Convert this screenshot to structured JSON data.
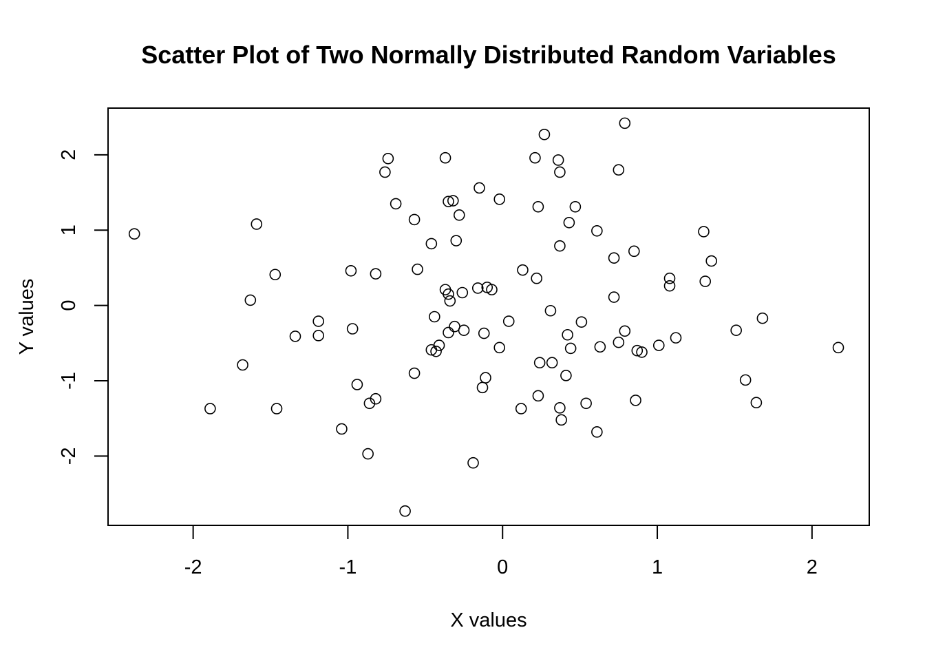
{
  "chart_data": {
    "type": "scatter",
    "title": "Scatter Plot of Two Normally Distributed Random Variables",
    "xlabel": "X values",
    "ylabel": "Y values",
    "xlim": [
      -2.55,
      2.37
    ],
    "ylim": [
      -2.92,
      2.62
    ],
    "xticks": [
      -2,
      -1,
      0,
      1,
      2
    ],
    "xtick_labels": [
      "-2",
      "-1",
      "0",
      "1",
      "2"
    ],
    "yticks": [
      -2,
      -1,
      0,
      1,
      2
    ],
    "ytick_labels": [
      "-2",
      "-1",
      "0",
      "1",
      "2"
    ],
    "grid": false,
    "marker": "open-circle",
    "color": "#000000",
    "points": [
      {
        "x": -2.38,
        "y": 0.95
      },
      {
        "x": -1.89,
        "y": -1.37
      },
      {
        "x": -1.68,
        "y": -0.79
      },
      {
        "x": -1.63,
        "y": 0.07
      },
      {
        "x": -1.59,
        "y": 1.08
      },
      {
        "x": -1.47,
        "y": 0.41
      },
      {
        "x": -1.46,
        "y": -1.37
      },
      {
        "x": -1.34,
        "y": -0.41
      },
      {
        "x": -1.19,
        "y": -0.21
      },
      {
        "x": -1.19,
        "y": -0.4
      },
      {
        "x": -1.04,
        "y": -1.64
      },
      {
        "x": -0.98,
        "y": 0.46
      },
      {
        "x": -0.97,
        "y": -0.31
      },
      {
        "x": -0.94,
        "y": -1.05
      },
      {
        "x": -0.87,
        "y": -1.97
      },
      {
        "x": -0.86,
        "y": -1.3
      },
      {
        "x": -0.82,
        "y": 0.42
      },
      {
        "x": -0.82,
        "y": -1.24
      },
      {
        "x": -0.76,
        "y": 1.77
      },
      {
        "x": -0.74,
        "y": 1.95
      },
      {
        "x": -0.69,
        "y": 1.35
      },
      {
        "x": -0.63,
        "y": -2.73
      },
      {
        "x": -0.57,
        "y": 1.14
      },
      {
        "x": -0.57,
        "y": -0.9
      },
      {
        "x": -0.55,
        "y": 0.48
      },
      {
        "x": -0.46,
        "y": 0.82
      },
      {
        "x": -0.46,
        "y": -0.59
      },
      {
        "x": -0.44,
        "y": -0.15
      },
      {
        "x": -0.43,
        "y": -0.61
      },
      {
        "x": -0.41,
        "y": -0.53
      },
      {
        "x": -0.37,
        "y": 0.21
      },
      {
        "x": -0.37,
        "y": 1.96
      },
      {
        "x": -0.35,
        "y": 1.38
      },
      {
        "x": -0.35,
        "y": -0.36
      },
      {
        "x": -0.35,
        "y": 0.15
      },
      {
        "x": -0.34,
        "y": 0.06
      },
      {
        "x": -0.32,
        "y": 1.39
      },
      {
        "x": -0.31,
        "y": -0.28
      },
      {
        "x": -0.3,
        "y": 0.86
      },
      {
        "x": -0.28,
        "y": 1.2
      },
      {
        "x": -0.26,
        "y": 0.17
      },
      {
        "x": -0.25,
        "y": -0.33
      },
      {
        "x": -0.19,
        "y": -2.09
      },
      {
        "x": -0.16,
        "y": 0.23
      },
      {
        "x": -0.15,
        "y": 1.56
      },
      {
        "x": -0.13,
        "y": -1.09
      },
      {
        "x": -0.12,
        "y": -0.37
      },
      {
        "x": -0.11,
        "y": -0.96
      },
      {
        "x": -0.1,
        "y": 0.24
      },
      {
        "x": -0.07,
        "y": 0.21
      },
      {
        "x": -0.02,
        "y": 1.41
      },
      {
        "x": -0.02,
        "y": -0.56
      },
      {
        "x": 0.04,
        "y": -0.21
      },
      {
        "x": 0.12,
        "y": -1.37
      },
      {
        "x": 0.13,
        "y": 0.47
      },
      {
        "x": 0.21,
        "y": 1.96
      },
      {
        "x": 0.22,
        "y": 0.36
      },
      {
        "x": 0.23,
        "y": -1.2
      },
      {
        "x": 0.23,
        "y": 1.31
      },
      {
        "x": 0.24,
        "y": -0.76
      },
      {
        "x": 0.27,
        "y": 2.27
      },
      {
        "x": 0.31,
        "y": -0.07
      },
      {
        "x": 0.32,
        "y": -0.76
      },
      {
        "x": 0.36,
        "y": 1.93
      },
      {
        "x": 0.37,
        "y": 0.79
      },
      {
        "x": 0.37,
        "y": -1.36
      },
      {
        "x": 0.37,
        "y": 1.77
      },
      {
        "x": 0.38,
        "y": -1.52
      },
      {
        "x": 0.41,
        "y": -0.93
      },
      {
        "x": 0.42,
        "y": -0.39
      },
      {
        "x": 0.43,
        "y": 1.1
      },
      {
        "x": 0.44,
        "y": -0.57
      },
      {
        "x": 0.47,
        "y": 1.31
      },
      {
        "x": 0.51,
        "y": -0.22
      },
      {
        "x": 0.54,
        "y": -1.3
      },
      {
        "x": 0.61,
        "y": 0.99
      },
      {
        "x": 0.61,
        "y": -1.68
      },
      {
        "x": 0.63,
        "y": -0.55
      },
      {
        "x": 0.72,
        "y": 0.11
      },
      {
        "x": 0.72,
        "y": 0.63
      },
      {
        "x": 0.75,
        "y": -0.49
      },
      {
        "x": 0.75,
        "y": 1.8
      },
      {
        "x": 0.79,
        "y": -0.34
      },
      {
        "x": 0.79,
        "y": 2.42
      },
      {
        "x": 0.85,
        "y": 0.72
      },
      {
        "x": 0.86,
        "y": -1.26
      },
      {
        "x": 0.87,
        "y": -0.6
      },
      {
        "x": 0.9,
        "y": -0.62
      },
      {
        "x": 1.01,
        "y": -0.53
      },
      {
        "x": 1.08,
        "y": 0.36
      },
      {
        "x": 1.08,
        "y": 0.26
      },
      {
        "x": 1.12,
        "y": -0.43
      },
      {
        "x": 1.3,
        "y": 0.98
      },
      {
        "x": 1.31,
        "y": 0.32
      },
      {
        "x": 1.35,
        "y": 0.59
      },
      {
        "x": 1.51,
        "y": -0.33
      },
      {
        "x": 1.57,
        "y": -0.99
      },
      {
        "x": 1.64,
        "y": -1.29
      },
      {
        "x": 1.68,
        "y": -0.17
      },
      {
        "x": 2.17,
        "y": -0.56
      }
    ]
  }
}
